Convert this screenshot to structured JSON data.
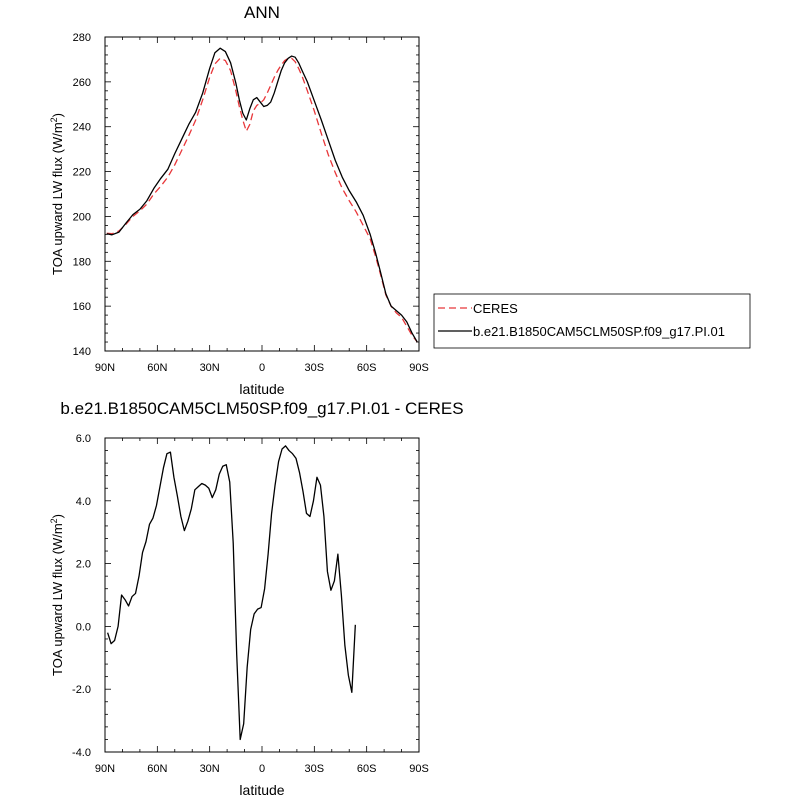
{
  "chart_data": [
    {
      "type": "line",
      "title": "ANN",
      "xlabel": "latitude",
      "ylabel_main": "TOA upward LW flux (W/m",
      "ylabel_sup": "2",
      "ylabel_close": ")",
      "xlim": [
        90,
        -90
      ],
      "ylim": [
        140,
        280
      ],
      "x_ticks": [
        90,
        60,
        30,
        0,
        -30,
        -60,
        -90
      ],
      "x_tick_labels": [
        "90N",
        "60N",
        "30N",
        "0",
        "30S",
        "60S",
        "90S"
      ],
      "y_ticks": [
        140,
        160,
        180,
        200,
        220,
        240,
        260,
        280
      ],
      "y_tick_labels": [
        "140",
        "160",
        "180",
        "200",
        "220",
        "240",
        "260",
        "280"
      ],
      "legend_position": "right",
      "series": [
        {
          "name": "CERES",
          "color": "#e8373a",
          "dash": "dashed",
          "x": [
            89,
            86,
            82,
            78,
            74,
            70,
            66,
            62,
            58,
            54,
            50,
            46,
            42,
            38,
            34,
            30,
            27,
            24,
            21,
            18,
            15,
            13,
            11,
            9,
            7,
            5,
            3,
            1,
            -1,
            -3,
            -5,
            -7,
            -9,
            -11,
            -13,
            -15,
            -17,
            -19,
            -21,
            -23,
            -26,
            -30,
            -34,
            -38,
            -42,
            -46,
            -50,
            -54,
            -58,
            -62,
            -65,
            -68,
            -71,
            -74,
            -77,
            -80,
            -83,
            -86,
            -89
          ],
          "y": [
            192.5,
            192.3,
            193.5,
            196.5,
            200,
            202.5,
            205.5,
            210,
            213.5,
            217.5,
            223,
            229.5,
            236,
            243,
            252,
            262,
            268,
            270.5,
            269.5,
            265,
            256,
            249,
            243,
            238,
            241,
            247,
            249.5,
            250.5,
            252,
            255,
            258.5,
            262,
            265,
            267.5,
            269.5,
            270.5,
            270.5,
            269,
            266,
            262.5,
            256,
            247,
            237,
            227.5,
            219.5,
            212.5,
            207,
            202,
            196,
            190,
            182.5,
            174,
            165,
            160,
            157,
            155,
            151,
            147,
            144
          ]
        },
        {
          "name": "b.e21.B1850CAM5CLM50SP.f09_g17.PI.01",
          "color": "#000000",
          "dash": "solid",
          "x": [
            89,
            86,
            82,
            78,
            74,
            70,
            66,
            62,
            58,
            54,
            50,
            46,
            42,
            38,
            34,
            30,
            27,
            24,
            21,
            18,
            15,
            13,
            11,
            9,
            7,
            5,
            3,
            1,
            -1,
            -3,
            -5,
            -7,
            -9,
            -11,
            -13,
            -15,
            -17,
            -19,
            -21,
            -23,
            -26,
            -30,
            -34,
            -38,
            -42,
            -46,
            -50,
            -54,
            -58,
            -62,
            -65,
            -68,
            -71,
            -74,
            -77,
            -80,
            -83,
            -86,
            -89
          ],
          "y": [
            192.3,
            191.8,
            193,
            197,
            200.8,
            203.2,
            207,
            212.5,
            217,
            221,
            228,
            234.5,
            241,
            246.5,
            255,
            266,
            273,
            275,
            273.5,
            268.5,
            259.5,
            252,
            246,
            243,
            248,
            252,
            253,
            251,
            249,
            249.5,
            251,
            255,
            260,
            265,
            268.5,
            270.5,
            271.5,
            271,
            268.5,
            265,
            260,
            251.5,
            243,
            234,
            225,
            217.5,
            211.5,
            206.5,
            200.5,
            192,
            184,
            175,
            165.5,
            160,
            158,
            156,
            153,
            148,
            144
          ]
        }
      ]
    },
    {
      "type": "line",
      "title": "b.e21.B1850CAM5CLM50SP.f09_g17.PI.01 - CERES",
      "xlabel": "latitude",
      "ylabel_main": "TOA upward LW flux (W/m",
      "ylabel_sup": "2",
      "ylabel_close": ")",
      "xlim": [
        90,
        -90
      ],
      "ylim": [
        -4,
        6
      ],
      "x_ticks": [
        90,
        60,
        30,
        0,
        -30,
        -60,
        -90
      ],
      "x_tick_labels": [
        "90N",
        "60N",
        "30N",
        "0",
        "30S",
        "60S",
        "90S"
      ],
      "y_ticks": [
        -4,
        -2,
        0,
        2,
        4,
        6
      ],
      "y_tick_labels": [
        "-4.0",
        "-2.0",
        "0.0",
        "2.0",
        "4.0",
        "6.0"
      ],
      "series": [
        {
          "color": "#000000",
          "dash": "solid",
          "x": [
            88.5,
            86.5,
            84.5,
            82.5,
            80.5,
            78.5,
            76.5,
            74.5,
            72.5,
            70.5,
            68.5,
            66.5,
            64.5,
            62.5,
            60.5,
            58.5,
            56.5,
            54.5,
            52.5,
            50.5,
            48.5,
            46.5,
            44.5,
            42.5,
            40.5,
            38.5,
            36.5,
            34.5,
            32.5,
            30.5,
            28.5,
            26.5,
            24.5,
            22.5,
            20.5,
            18.5,
            16.5,
            14.5,
            12.5,
            10.5,
            8.5,
            6.5,
            4.5,
            2.5,
            0.5,
            -1.5,
            -3.5,
            -5.5,
            -7.5,
            -9.5,
            -11.5,
            -13.5,
            -15.5,
            -17.5,
            -19.5,
            -21.5,
            -23.5,
            -25.5,
            -27.5,
            -29.5,
            -31.5,
            -33.5,
            -35.5,
            -37.5,
            -39.5,
            -41.5,
            -43.5,
            -45.5,
            -47.5,
            -49.5,
            -51.5,
            -53.5,
            -55.5,
            -57.5,
            -59.5,
            -61.5,
            -63.5,
            -65.5,
            -67.5,
            -69.5,
            -71.5,
            -73.5,
            -75.5,
            -77.5,
            -79.5,
            -81.5,
            -83.5,
            -85.5,
            -87.5,
            -89.5
          ],
          "y": [
            -0.2,
            -0.55,
            -0.45,
            0,
            1,
            0.85,
            0.65,
            0.95,
            1.05,
            1.6,
            2.35,
            2.7,
            3.25,
            3.45,
            3.85,
            4.45,
            5.05,
            5.5,
            5.55,
            4.75,
            4.15,
            3.5,
            3.05,
            3.35,
            3.75,
            4.35,
            4.45,
            4.55,
            4.5,
            4.4,
            4.1,
            4.35,
            4.85,
            5.1,
            5.15,
            4.6,
            2.65,
            -0.9,
            -3.6,
            -3.1,
            -1.3,
            -0.1,
            0.4,
            0.55,
            0.6,
            1.2,
            2.3,
            3.6,
            4.5,
            5.25,
            5.65,
            5.75,
            5.6,
            5.5,
            5.35,
            4.9,
            4.3,
            3.6,
            3.5,
            4,
            4.75,
            4.5,
            3.5,
            1.75,
            1.15,
            1.45,
            2.3,
            1,
            -0.6,
            -1.55,
            -2.1,
            0.05,
            null,
            null,
            null,
            null,
            null,
            null,
            null,
            null,
            null,
            null,
            null,
            null,
            null,
            null,
            null,
            null,
            null,
            null
          ]
        }
      ]
    }
  ]
}
